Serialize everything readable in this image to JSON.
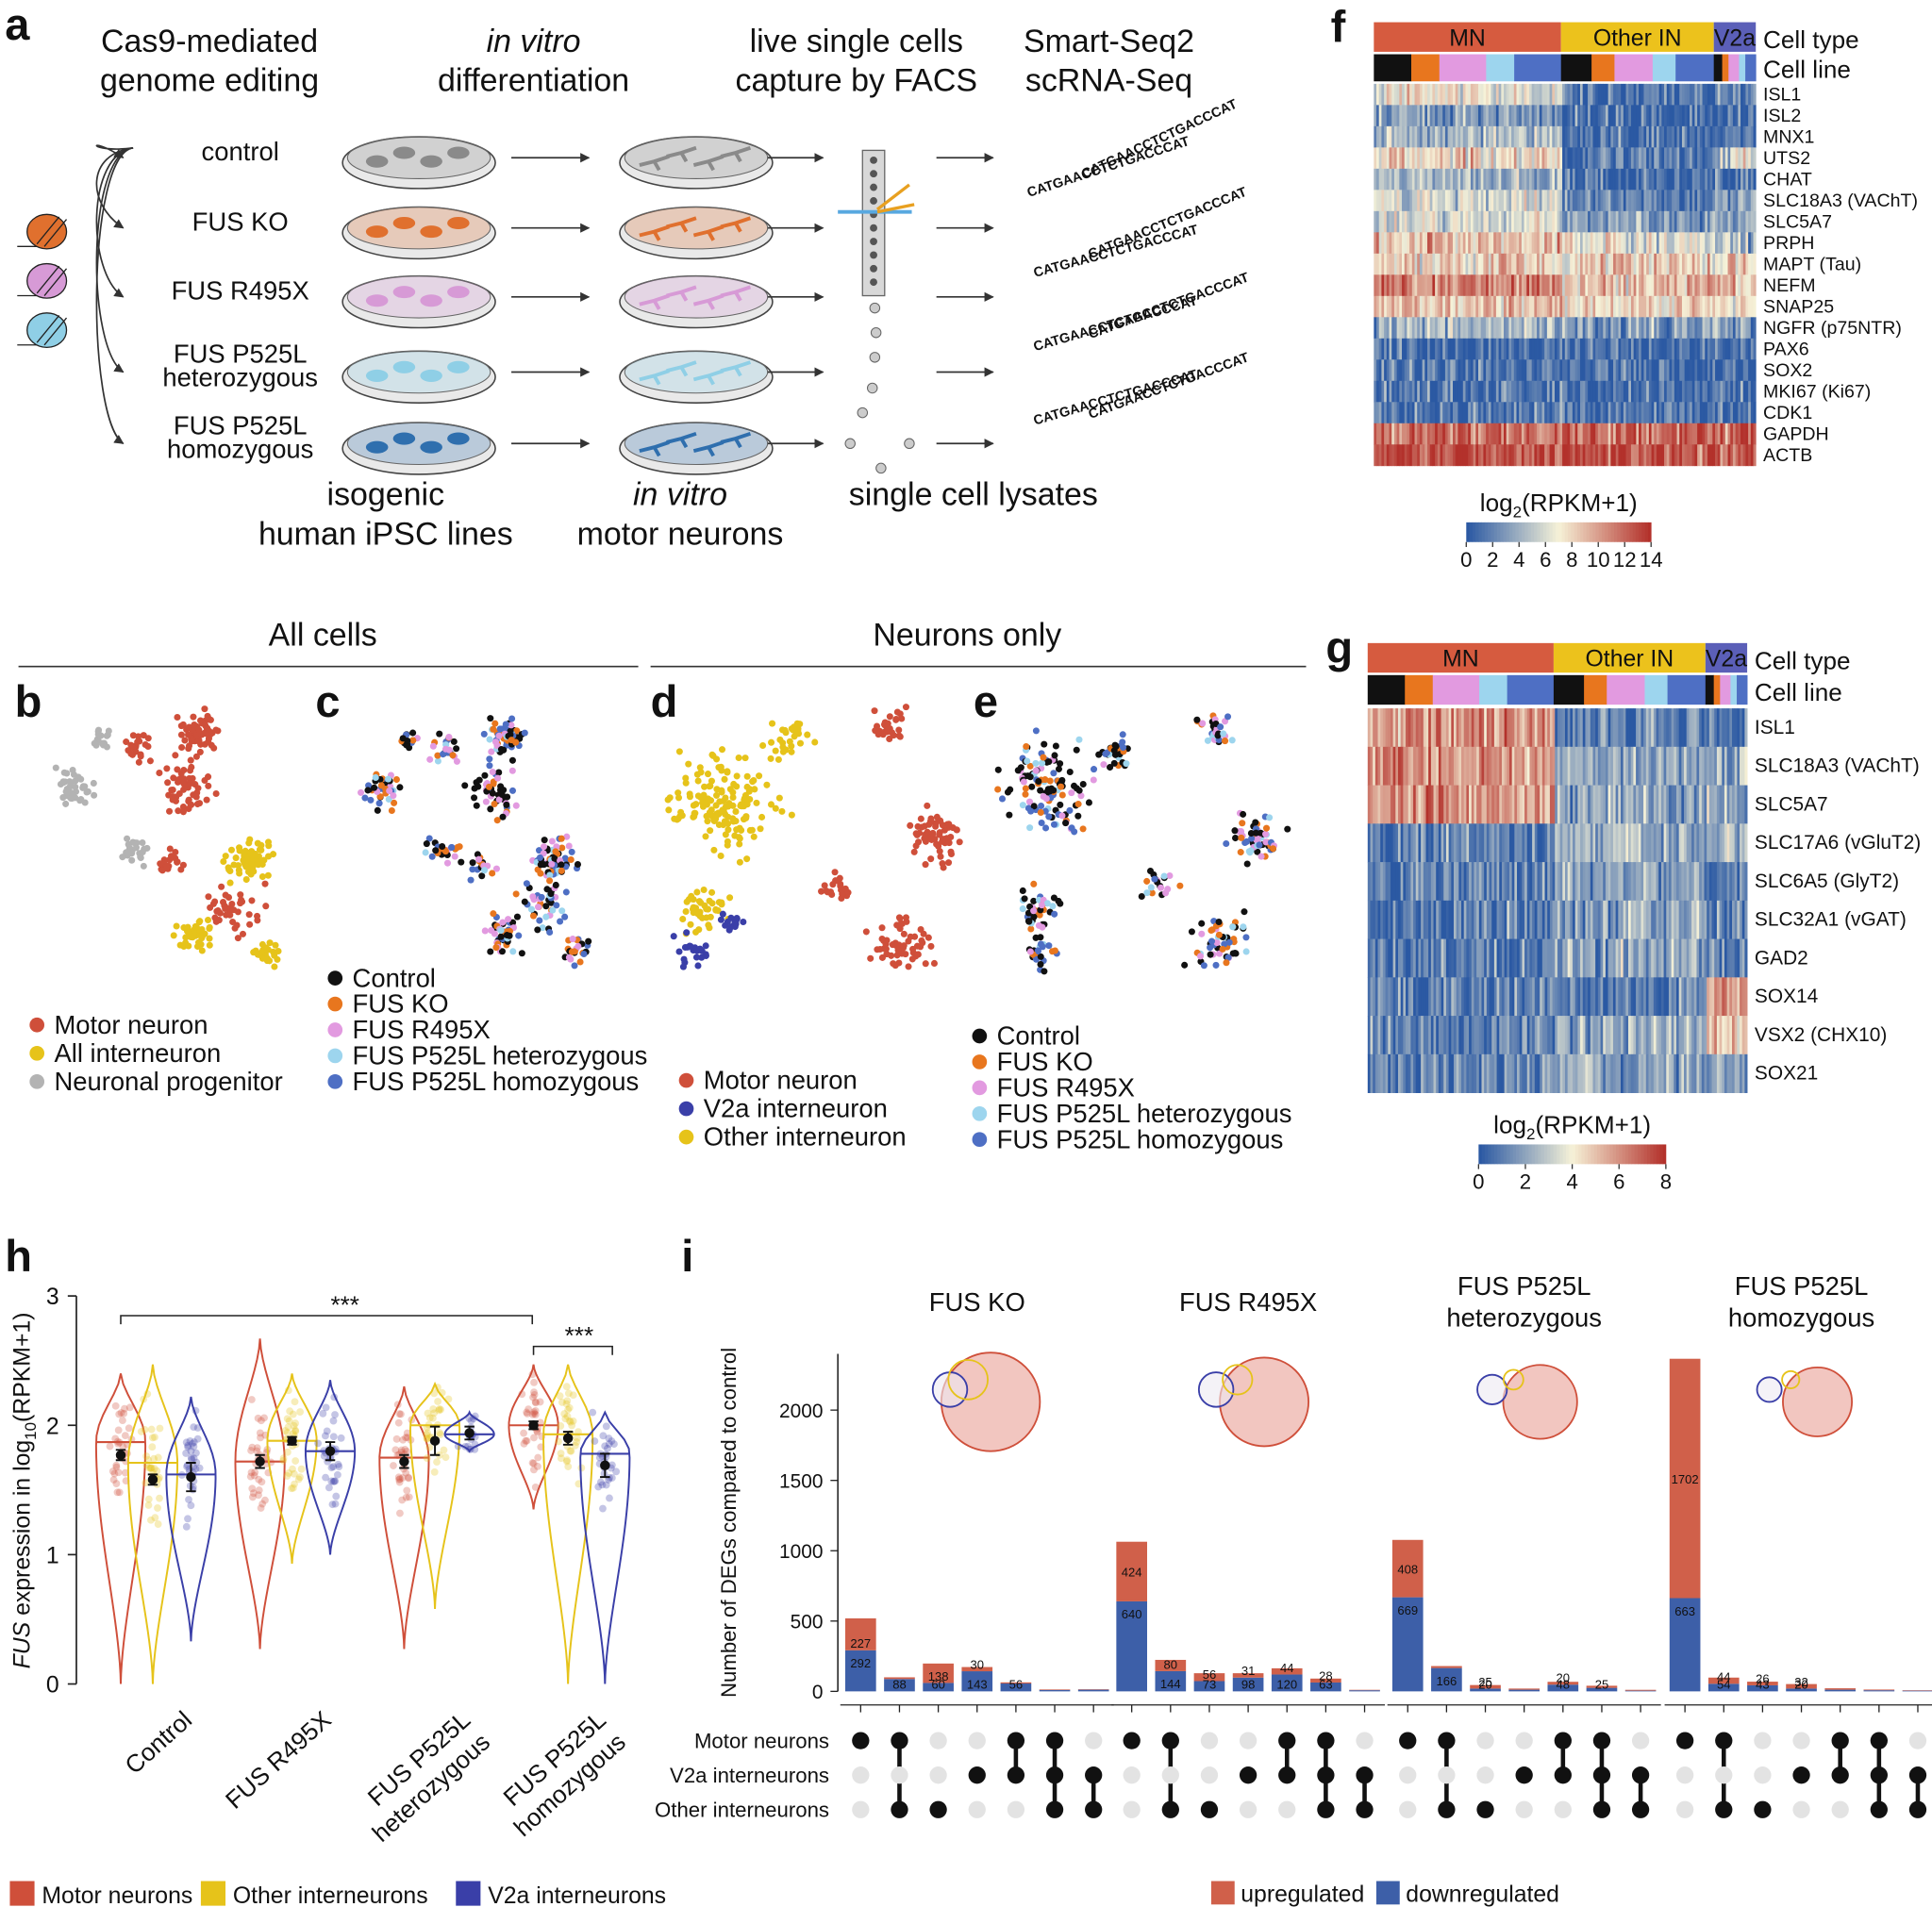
{
  "panel_labels": {
    "a": "a",
    "b": "b",
    "c": "c",
    "d": "d",
    "e": "e",
    "f": "f",
    "g": "g",
    "h": "h",
    "i": "i"
  },
  "a": {
    "headers": [
      [
        "Cas9-mediated",
        "genome editing"
      ],
      [
        "in vitro",
        "differentiation"
      ],
      [
        "live single cells",
        "capture by FACS"
      ],
      [
        "Smart-Seq2",
        "scRNA-Seq"
      ]
    ],
    "rows": [
      {
        "lines": [
          "control"
        ],
        "color": "#8a8a8a"
      },
      {
        "lines": [
          "FUS KO"
        ],
        "color": "#e0702e"
      },
      {
        "lines": [
          "FUS R495X"
        ],
        "color": "#d79ad6"
      },
      {
        "lines": [
          "FUS P525L",
          "heterozygous"
        ],
        "color": "#8fcfe6"
      },
      {
        "lines": [
          "FUS P525L",
          "homozygous"
        ],
        "color": "#2f6fae"
      }
    ],
    "footers": [
      [
        "isogenic",
        "human iPSC lines"
      ],
      [
        "in vitro",
        "motor neurons"
      ],
      [
        "single cell lysates"
      ]
    ],
    "sequence": "CATGAACCTCTGACCCAT"
  },
  "umap": {
    "all_cells": "All cells",
    "neurons_only": "Neurons only",
    "b_legend": [
      {
        "name": "Motor neuron",
        "color": "#cf4f3a"
      },
      {
        "name": "All interneuron",
        "color": "#e6c31a"
      },
      {
        "name": "Neuronal progenitor",
        "color": "#b3b3b3"
      }
    ],
    "line_legend": [
      {
        "name": "Control",
        "color": "#111111"
      },
      {
        "name": "FUS KO",
        "color": "#e8761e"
      },
      {
        "name": "FUS R495X",
        "color": "#e29ae0"
      },
      {
        "name": "FUS P525L heterozygous",
        "color": "#9dd5ee"
      },
      {
        "name": "FUS P525L homozygous",
        "color": "#4e6fc4"
      }
    ],
    "d_legend": [
      {
        "name": "Motor neuron",
        "color": "#cf4f3a"
      },
      {
        "name": "V2a interneuron",
        "color": "#3a3fa8"
      },
      {
        "name": "Other interneuron",
        "color": "#e6c31a"
      }
    ]
  },
  "f": {
    "cell_type": "Cell type",
    "cell_line": "Cell line",
    "groups": [
      {
        "name": "MN",
        "color": "#d65b3f"
      },
      {
        "name": "Other IN",
        "color": "#ecc21c"
      },
      {
        "name": "V2a",
        "color": "#5b5fb8"
      }
    ],
    "genes": [
      "ISL1",
      "ISL2",
      "MNX1",
      "UTS2",
      "CHAT",
      "SLC18A3 (VAChT)",
      "SLC5A7",
      "PRPH",
      "MAPT (Tau)",
      "NEFM",
      "SNAP25",
      "NGFR (p75NTR)",
      "PAX6",
      "SOX2",
      "MKI67 (Ki67)",
      "CDK1",
      "GAPDH",
      "ACTB"
    ],
    "levels": [
      [
        7,
        1,
        2
      ],
      [
        3,
        1,
        1
      ],
      [
        4,
        1,
        1
      ],
      [
        8,
        1,
        6
      ],
      [
        4,
        1,
        1
      ],
      [
        6,
        2,
        3
      ],
      [
        6,
        3,
        3
      ],
      [
        9,
        6,
        4
      ],
      [
        8,
        8,
        8
      ],
      [
        11,
        9,
        9
      ],
      [
        9,
        8,
        8
      ],
      [
        4,
        3,
        3
      ],
      [
        1,
        1,
        1
      ],
      [
        1,
        1,
        1
      ],
      [
        1,
        1,
        1
      ],
      [
        1,
        1,
        1
      ],
      [
        12,
        12,
        12
      ],
      [
        13,
        13,
        13
      ]
    ],
    "cmap": [
      "#2b59a3",
      "#f6f2d8",
      "#b3312b"
    ],
    "colorbar": {
      "label": "log",
      "sub": "2",
      "tail": "(RPKM+1)",
      "lim": [
        0,
        14
      ],
      "ticks": [
        0,
        2,
        4,
        6,
        8,
        10,
        12,
        14
      ]
    }
  },
  "g": {
    "cell_type": "Cell type",
    "cell_line": "Cell line",
    "groups": [
      {
        "name": "MN",
        "color": "#d65b3f"
      },
      {
        "name": "Other IN",
        "color": "#ecc21c"
      },
      {
        "name": "V2a",
        "color": "#5b5fb8"
      }
    ],
    "genes": [
      "ISL1",
      "SLC18A3 (VAChT)",
      "SLC5A7",
      "SLC17A6 (vGluT2)",
      "SLC6A5 (GlyT2)",
      "SLC32A1 (vGAT)",
      "GAD2",
      "SOX14",
      "VSX2 (CHX10)",
      "SOX21"
    ],
    "levels": [
      [
        6,
        1,
        1
      ],
      [
        6,
        2,
        2
      ],
      [
        6,
        2,
        2
      ],
      [
        1,
        2,
        2
      ],
      [
        1,
        2,
        1
      ],
      [
        1,
        2,
        1
      ],
      [
        1,
        2,
        1
      ],
      [
        1,
        1,
        6
      ],
      [
        1,
        2,
        5
      ],
      [
        1,
        2,
        2
      ]
    ],
    "cmap": [
      "#2b59a3",
      "#f6f2d8",
      "#b3312b"
    ],
    "colorbar": {
      "label": "log",
      "sub": "2",
      "tail": "(RPKM+1)",
      "lim": [
        0,
        8
      ],
      "ticks": [
        0,
        2,
        4,
        6,
        8
      ]
    }
  },
  "chart_data": [
    {
      "type": "violin",
      "ylabel": {
        "italic": "FUS",
        "text": " expression in log",
        "sub": "10",
        "tail": "(RPKM+1)"
      },
      "categories": [
        [
          "Control"
        ],
        [
          "FUS R495X"
        ],
        [
          "FUS P525L",
          "heterozygous"
        ],
        [
          "FUS P525L",
          "homozygous"
        ]
      ],
      "ylim": [
        0,
        3
      ],
      "yticks": [
        0,
        1,
        2,
        3
      ],
      "annotations": [
        "***",
        "***"
      ],
      "series": [
        {
          "name": "Motor neurons",
          "color": "#cf4f3a",
          "values": [
            1.77,
            1.72,
            1.72,
            2.0
          ],
          "errors": [
            0.04,
            0.05,
            0.05,
            0.03
          ],
          "medians": [
            1.87,
            1.72,
            1.75,
            2.0
          ],
          "mins": [
            0,
            0.27,
            0.27,
            1.35
          ],
          "maxs": [
            2.4,
            2.67,
            2.3,
            2.47
          ]
        },
        {
          "name": "Other interneurons",
          "color": "#e6c31a",
          "values": [
            1.58,
            1.88,
            1.88,
            1.9
          ],
          "errors": [
            0.04,
            0.03,
            0.11,
            0.05
          ],
          "medians": [
            1.71,
            1.88,
            2.0,
            1.93
          ],
          "mins": [
            0,
            0.93,
            0.58,
            0
          ],
          "maxs": [
            2.47,
            2.4,
            2.32,
            2.47
          ]
        },
        {
          "name": "V2a interneurons",
          "color": "#3a3fa8",
          "values": [
            1.6,
            1.8,
            1.94,
            1.69
          ],
          "errors": [
            0.11,
            0.07,
            0.05,
            0.09
          ],
          "medians": [
            1.62,
            1.8,
            1.93,
            1.78
          ],
          "mins": [
            0.33,
            1.0,
            1.8,
            0
          ],
          "maxs": [
            2.22,
            2.35,
            2.1,
            2.1
          ]
        }
      ]
    },
    {
      "type": "upset",
      "ylabel": "Number of DEGs compared to control",
      "ylim": [
        0,
        2400
      ],
      "yticks": [
        0,
        500,
        1000,
        1500,
        2000
      ],
      "sets": [
        {
          "name": "Motor neurons",
          "color": "#cf4f3a"
        },
        {
          "name": "V2a interneurons",
          "color": "#3a3fa8"
        },
        {
          "name": "Other interneurons",
          "color": "#e6c31a"
        }
      ],
      "intersections": [
        [
          1,
          0,
          0
        ],
        [
          1,
          0,
          1
        ],
        [
          0,
          0,
          1
        ],
        [
          0,
          1,
          0
        ],
        [
          1,
          1,
          0
        ],
        [
          1,
          1,
          1
        ],
        [
          0,
          1,
          1
        ]
      ],
      "series": [
        {
          "name": "upregulated",
          "color": "#d0604a"
        },
        {
          "name": "downregulated",
          "color": "#3d5fa8"
        }
      ],
      "groups": [
        {
          "title": [
            "FUS KO"
          ],
          "up": [
            227,
            12,
            138,
            30,
            8,
            4,
            3
          ],
          "down": [
            292,
            88,
            60,
            143,
            56,
            10,
            12
          ]
        },
        {
          "title": [
            "FUS R495X"
          ],
          "up": [
            424,
            80,
            56,
            31,
            44,
            28,
            3
          ],
          "down": [
            640,
            144,
            73,
            98,
            120,
            63,
            8
          ]
        },
        {
          "title": [
            "FUS P525L",
            "heterozygous"
          ],
          "up": [
            408,
            14,
            25,
            8,
            20,
            15,
            6
          ],
          "down": [
            669,
            166,
            20,
            12,
            48,
            25,
            5
          ]
        },
        {
          "title": [
            "FUS P525L",
            "homozygous"
          ],
          "up": [
            1702,
            44,
            26,
            32,
            10,
            5,
            3
          ],
          "down": [
            663,
            54,
            43,
            20,
            12,
            8,
            5
          ]
        }
      ]
    }
  ]
}
